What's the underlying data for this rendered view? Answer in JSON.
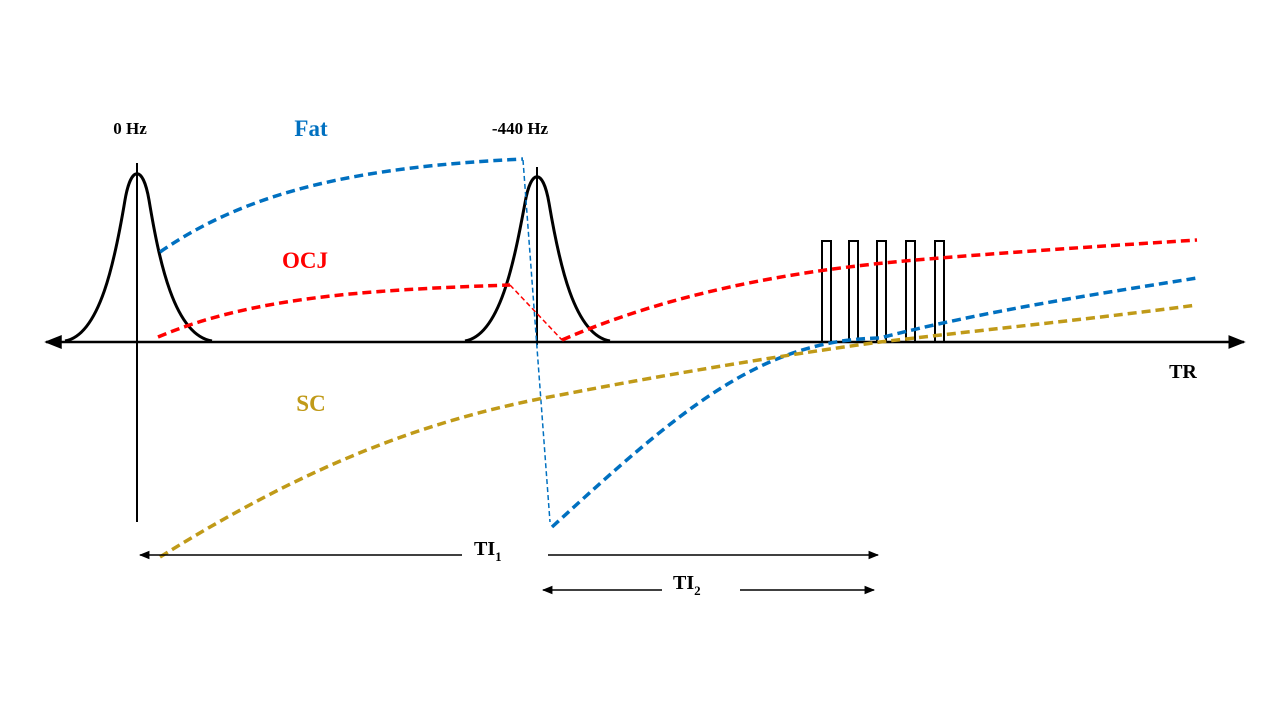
{
  "labels": {
    "freq_left": "0 Hz",
    "freq_right": "-440 Hz",
    "fat": "Fat",
    "ocj": "OCJ",
    "sc": "SC",
    "tr": "TR",
    "ti1": {
      "main": "TI",
      "sub": "1"
    },
    "ti2": {
      "main": "TI",
      "sub": "2"
    }
  }
}
